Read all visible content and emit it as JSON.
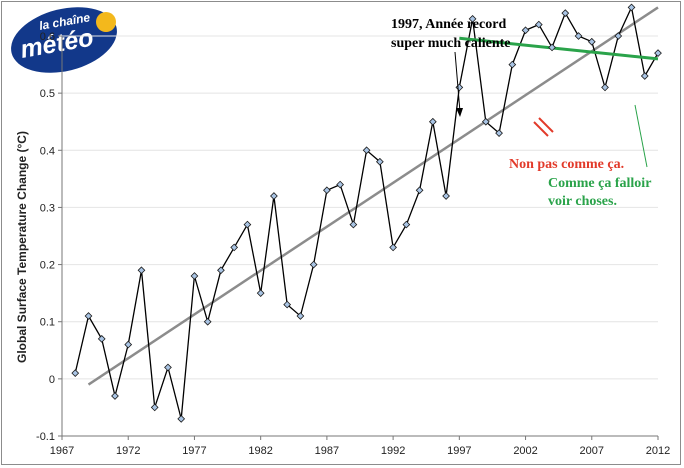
{
  "logo": {
    "line1": "la chaîne",
    "line2": "météo",
    "colors": {
      "background": "#12388a",
      "sun": "#f3b81c"
    }
  },
  "chart_data": {
    "type": "line",
    "title": "",
    "ylabel": "Global Surface Temperature Change (°C)",
    "xlabel": "",
    "xlim": [
      1967,
      2012
    ],
    "ylim": [
      -0.1,
      0.6
    ],
    "grid": true,
    "x_ticks": [
      "1967",
      "1972",
      "1977",
      "1982",
      "1987",
      "1992",
      "1997",
      "2002",
      "2007",
      "2012"
    ],
    "y_ticks": [
      "-0.1",
      "0",
      "0.1",
      "0.2",
      "0.3",
      "0.4",
      "0.5",
      "0.6"
    ],
    "series": [
      {
        "x": [
          1968,
          1969,
          1970,
          1971,
          1972,
          1973,
          1974,
          1975,
          1976,
          1977,
          1978,
          1979,
          1980,
          1981,
          1982,
          1983,
          1984,
          1985,
          1986,
          1987,
          1988,
          1989,
          1990,
          1991,
          1992,
          1993,
          1994,
          1995,
          1996,
          1997,
          1998,
          1999,
          2000,
          2001,
          2002,
          2003,
          2004,
          2005,
          2006,
          2007,
          2008,
          2009,
          2010,
          2011,
          2012
        ],
        "values": [
          0.01,
          0.11,
          0.07,
          -0.03,
          0.06,
          0.19,
          -0.05,
          0.02,
          -0.07,
          0.18,
          0.1,
          0.19,
          0.23,
          0.27,
          0.15,
          0.32,
          0.13,
          0.11,
          0.2,
          0.33,
          0.34,
          0.27,
          0.4,
          0.38,
          0.23,
          0.27,
          0.33,
          0.45,
          0.32,
          0.51,
          0.63,
          0.45,
          0.43,
          0.55,
          0.61,
          0.62,
          0.58,
          0.64,
          0.6,
          0.59,
          0.51,
          0.6,
          0.65,
          0.53,
          0.57
        ],
        "color": "#000000",
        "marker_fill": "#a9c4e4"
      }
    ],
    "trend_line": {
      "x": [
        1969,
        2012
      ],
      "y": [
        -0.01,
        0.65
      ],
      "color": "#8c8c8c"
    },
    "green_line": {
      "x": [
        1997,
        2012
      ],
      "y": [
        0.596,
        0.56
      ],
      "color": "#2aa34a"
    },
    "annotations": [
      {
        "text": "1997, Année record",
        "color": "#000000"
      },
      {
        "text": "super much caliente",
        "color": "#000000"
      },
      {
        "text": "Non pas comme ça.",
        "color": "#e23a2a"
      },
      {
        "text": "Comme ça falloir",
        "color": "#2aa34a"
      },
      {
        "text": "voir choses.",
        "color": "#2aa34a"
      }
    ]
  }
}
